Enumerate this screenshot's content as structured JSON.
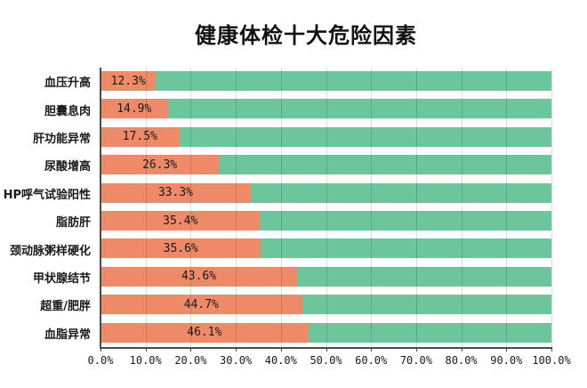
{
  "chart_data": {
    "type": "bar",
    "orientation": "horizontal",
    "stacked": true,
    "title": "健康体检十大危险因素",
    "categories": [
      "血压升高",
      "胆囊息肉",
      "肝功能异常",
      "尿酸增高",
      "HP呼气试验阳性",
      "脂肪肝",
      "颈动脉粥样硬化",
      "甲状腺结节",
      "超重/肥胖",
      "血脂异常"
    ],
    "values": [
      12.3,
      14.9,
      17.5,
      26.3,
      33.3,
      35.4,
      35.6,
      43.6,
      44.7,
      46.1
    ],
    "value_labels": [
      "12.3%",
      "14.9%",
      "17.5%",
      "26.3%",
      "33.3%",
      "35.4%",
      "35.6%",
      "43.6%",
      "44.7%",
      "46.1%"
    ],
    "remainder_to": 100,
    "x_ticks": [
      "0.0%",
      "10.0%",
      "20.0%",
      "30.0%",
      "40.0%",
      "50.0%",
      "60.0%",
      "70.0%",
      "80.0%",
      "90.0%",
      "100.0%"
    ],
    "xlim": [
      0,
      100
    ],
    "grid": true,
    "legend": "none",
    "colors": {
      "value_bar": "#EF8A68",
      "remainder_bar": "#6DC69B",
      "gridline": "rgba(0,0,0,0.14)",
      "axis": "#4a4a4a",
      "text": "#1a1a1a"
    }
  }
}
